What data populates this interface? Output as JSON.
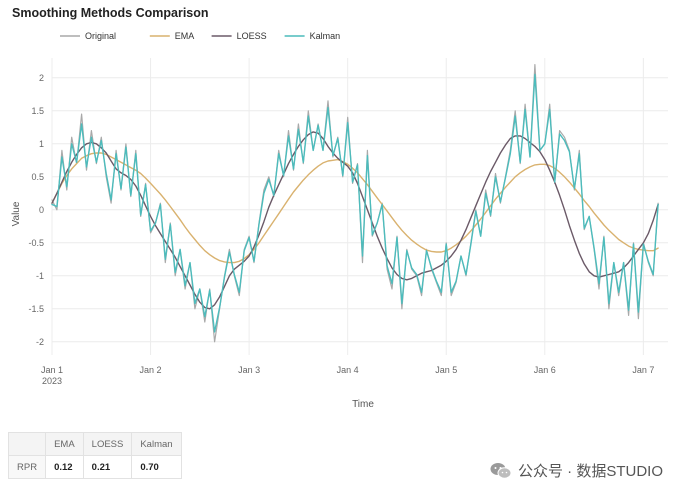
{
  "chart_data": {
    "type": "line",
    "title": "Smoothing Methods Comparison",
    "xlabel": "Time",
    "ylabel": "Value",
    "ylim": [
      -2.2,
      2.3
    ],
    "yticks": [
      -2,
      -1.5,
      -1,
      -0.5,
      0,
      0.5,
      1,
      1.5,
      2
    ],
    "xlim": [
      0,
      6.25
    ],
    "xticks": [
      {
        "value": 0,
        "label": "Jan 1",
        "sublabel": "2023"
      },
      {
        "value": 1,
        "label": "Jan 2"
      },
      {
        "value": 2,
        "label": "Jan 3"
      },
      {
        "value": 3,
        "label": "Jan 4"
      },
      {
        "value": 4,
        "label": "Jan 5"
      },
      {
        "value": 5,
        "label": "Jan 6"
      },
      {
        "value": 6,
        "label": "Jan 7"
      }
    ],
    "grid": true,
    "legend_position": "top-left",
    "x": [
      0,
      0.05,
      0.1,
      0.15,
      0.2,
      0.25,
      0.3,
      0.35,
      0.4,
      0.45,
      0.5,
      0.55,
      0.6,
      0.65,
      0.7,
      0.75,
      0.8,
      0.85,
      0.9,
      0.95,
      1.0,
      1.05,
      1.1,
      1.15,
      1.2,
      1.25,
      1.3,
      1.35,
      1.4,
      1.45,
      1.5,
      1.55,
      1.6,
      1.65,
      1.7,
      1.75,
      1.8,
      1.85,
      1.9,
      1.95,
      2.0,
      2.05,
      2.1,
      2.15,
      2.2,
      2.25,
      2.3,
      2.35,
      2.4,
      2.45,
      2.5,
      2.55,
      2.6,
      2.65,
      2.7,
      2.75,
      2.8,
      2.85,
      2.9,
      2.95,
      3.0,
      3.05,
      3.1,
      3.15,
      3.2,
      3.25,
      3.3,
      3.35,
      3.4,
      3.45,
      3.5,
      3.55,
      3.6,
      3.65,
      3.7,
      3.75,
      3.8,
      3.85,
      3.9,
      3.95,
      4.0,
      4.05,
      4.1,
      4.15,
      4.2,
      4.25,
      4.3,
      4.35,
      4.4,
      4.45,
      4.5,
      4.55,
      4.6,
      4.65,
      4.7,
      4.75,
      4.8,
      4.85,
      4.9,
      4.95,
      5.0,
      5.05,
      5.1,
      5.15,
      5.2,
      5.25,
      5.3,
      5.35,
      5.4,
      5.45,
      5.5,
      5.55,
      5.6,
      5.65,
      5.7,
      5.75,
      5.8,
      5.85,
      5.9,
      5.95,
      6.0,
      6.05,
      6.1,
      6.15
    ],
    "series": [
      {
        "name": "Original",
        "color": "#a9a9a9",
        "width": 1.2,
        "values": [
          0.15,
          0.0,
          0.9,
          0.3,
          1.1,
          0.7,
          1.45,
          0.6,
          1.2,
          0.7,
          1.1,
          0.5,
          0.1,
          0.9,
          0.3,
          1.0,
          0.2,
          0.9,
          -0.1,
          0.4,
          -0.35,
          -0.2,
          0.1,
          -0.8,
          -0.2,
          -1.0,
          -0.6,
          -1.2,
          -0.8,
          -1.5,
          -1.2,
          -1.7,
          -1.2,
          -2.0,
          -1.5,
          -1.0,
          -0.6,
          -1.0,
          -1.3,
          -0.6,
          -0.4,
          -0.8,
          -0.2,
          0.3,
          0.5,
          0.2,
          0.9,
          0.5,
          1.2,
          0.6,
          1.3,
          0.7,
          1.5,
          0.9,
          1.3,
          0.9,
          1.65,
          0.8,
          1.1,
          0.5,
          1.4,
          0.4,
          0.7,
          -0.8,
          0.9,
          -0.4,
          -0.2,
          0.1,
          -0.9,
          -1.2,
          -0.4,
          -1.5,
          -0.6,
          -0.9,
          -1.0,
          -1.3,
          -0.6,
          -0.9,
          -1.1,
          -1.3,
          -0.5,
          -1.3,
          -1.1,
          -0.7,
          -1.0,
          -0.5,
          0.0,
          -0.4,
          0.3,
          -0.1,
          0.55,
          0.1,
          0.5,
          0.9,
          1.5,
          0.7,
          1.6,
          0.8,
          2.2,
          0.9,
          1.0,
          1.6,
          0.4,
          1.2,
          1.1,
          0.9,
          0.3,
          0.9,
          -0.3,
          -0.1,
          -0.6,
          -1.2,
          -0.4,
          -1.5,
          -0.8,
          -1.3,
          -0.8,
          -1.6,
          -0.5,
          -1.65,
          -0.5,
          -0.8,
          -1.0,
          0.1
        ]
      },
      {
        "name": "EMA",
        "color": "#d9b26f",
        "width": 1.4,
        "values": [
          0.1,
          0.25,
          0.4,
          0.52,
          0.62,
          0.7,
          0.78,
          0.82,
          0.85,
          0.86,
          0.86,
          0.84,
          0.8,
          0.76,
          0.72,
          0.68,
          0.64,
          0.6,
          0.55,
          0.48,
          0.4,
          0.32,
          0.24,
          0.15,
          0.05,
          -0.05,
          -0.15,
          -0.26,
          -0.36,
          -0.45,
          -0.54,
          -0.62,
          -0.68,
          -0.73,
          -0.77,
          -0.79,
          -0.8,
          -0.8,
          -0.78,
          -0.74,
          -0.68,
          -0.6,
          -0.5,
          -0.39,
          -0.28,
          -0.17,
          -0.06,
          0.05,
          0.16,
          0.27,
          0.36,
          0.45,
          0.53,
          0.6,
          0.66,
          0.71,
          0.74,
          0.75,
          0.76,
          0.73,
          0.69,
          0.63,
          0.56,
          0.47,
          0.38,
          0.28,
          0.18,
          0.08,
          -0.02,
          -0.12,
          -0.22,
          -0.31,
          -0.39,
          -0.46,
          -0.52,
          -0.57,
          -0.61,
          -0.63,
          -0.64,
          -0.64,
          -0.62,
          -0.58,
          -0.53,
          -0.47,
          -0.4,
          -0.32,
          -0.23,
          -0.14,
          -0.04,
          0.06,
          0.16,
          0.25,
          0.34,
          0.42,
          0.5,
          0.56,
          0.61,
          0.65,
          0.68,
          0.69,
          0.69,
          0.67,
          0.63,
          0.57,
          0.5,
          0.42,
          0.33,
          0.24,
          0.14,
          0.05,
          -0.05,
          -0.14,
          -0.23,
          -0.31,
          -0.38,
          -0.45,
          -0.5,
          -0.55,
          -0.58,
          -0.6,
          -0.61,
          -0.62,
          -0.62,
          -0.58
        ]
      },
      {
        "name": "LOESS",
        "color": "#6b5a68",
        "width": 1.4,
        "values": [
          0.1,
          0.25,
          0.42,
          0.58,
          0.72,
          0.84,
          0.94,
          1.0,
          1.02,
          1.0,
          0.94,
          0.86,
          0.74,
          0.62,
          0.56,
          0.52,
          0.46,
          0.36,
          0.22,
          0.06,
          -0.1,
          -0.24,
          -0.36,
          -0.48,
          -0.6,
          -0.72,
          -0.86,
          -1.0,
          -1.14,
          -1.28,
          -1.4,
          -1.48,
          -1.5,
          -1.44,
          -1.32,
          -1.16,
          -1.0,
          -0.9,
          -0.84,
          -0.78,
          -0.7,
          -0.56,
          -0.38,
          -0.18,
          0.04,
          0.22,
          0.38,
          0.54,
          0.7,
          0.84,
          0.96,
          1.06,
          1.14,
          1.18,
          1.16,
          1.08,
          0.96,
          0.86,
          0.78,
          0.72,
          0.66,
          0.56,
          0.4,
          0.2,
          0.0,
          -0.2,
          -0.4,
          -0.58,
          -0.74,
          -0.88,
          -0.98,
          -1.04,
          -1.06,
          -1.04,
          -1.0,
          -0.96,
          -0.94,
          -0.92,
          -0.88,
          -0.84,
          -0.78,
          -0.7,
          -0.6,
          -0.46,
          -0.3,
          -0.12,
          0.06,
          0.24,
          0.42,
          0.58,
          0.72,
          0.86,
          0.98,
          1.08,
          1.12,
          1.12,
          1.08,
          1.02,
          0.96,
          0.88,
          0.76,
          0.6,
          0.42,
          0.22,
          0.0,
          -0.24,
          -0.46,
          -0.66,
          -0.82,
          -0.94,
          -1.0,
          -1.02,
          -1.0,
          -0.98,
          -0.96,
          -0.94,
          -0.88,
          -0.8,
          -0.7,
          -0.6,
          -0.5,
          -0.36,
          -0.16,
          0.08
        ]
      },
      {
        "name": "Kalman",
        "color": "#4cbcbc",
        "width": 1.4,
        "values": [
          0.08,
          0.05,
          0.8,
          0.35,
          1.0,
          0.72,
          1.3,
          0.65,
          1.1,
          0.72,
          1.05,
          0.55,
          0.15,
          0.85,
          0.32,
          0.95,
          0.22,
          0.85,
          -0.08,
          0.38,
          -0.32,
          -0.2,
          0.08,
          -0.75,
          -0.22,
          -0.95,
          -0.6,
          -1.15,
          -0.8,
          -1.42,
          -1.2,
          -1.62,
          -1.22,
          -1.85,
          -1.48,
          -1.02,
          -0.64,
          -0.98,
          -1.25,
          -0.62,
          -0.42,
          -0.78,
          -0.22,
          0.25,
          0.46,
          0.22,
          0.85,
          0.52,
          1.12,
          0.62,
          1.22,
          0.72,
          1.42,
          0.9,
          1.28,
          0.9,
          1.55,
          0.82,
          1.08,
          0.52,
          1.32,
          0.42,
          0.68,
          -0.7,
          0.82,
          -0.38,
          -0.2,
          0.08,
          -0.85,
          -1.12,
          -0.42,
          -1.42,
          -0.62,
          -0.88,
          -0.98,
          -1.25,
          -0.62,
          -0.88,
          -1.08,
          -1.25,
          -0.52,
          -1.25,
          -1.08,
          -0.7,
          -0.98,
          -0.52,
          -0.02,
          -0.4,
          0.25,
          -0.08,
          0.5,
          0.12,
          0.48,
          0.85,
          1.42,
          0.72,
          1.52,
          0.8,
          2.05,
          0.9,
          1.0,
          1.52,
          0.42,
          1.15,
          1.05,
          0.88,
          0.32,
          0.85,
          -0.28,
          -0.1,
          -0.58,
          -1.12,
          -0.42,
          -1.42,
          -0.8,
          -1.25,
          -0.8,
          -1.52,
          -0.52,
          -1.55,
          -0.52,
          -0.78,
          -0.98,
          0.08
        ]
      }
    ]
  },
  "table": {
    "headers": [
      "",
      "EMA",
      "LOESS",
      "Kalman"
    ],
    "row_label": "RPR",
    "values": [
      "0.12",
      "0.21",
      "0.70"
    ]
  },
  "watermark": {
    "icon": "wechat-icon",
    "text": "公众号 · 数据STUDIO"
  }
}
